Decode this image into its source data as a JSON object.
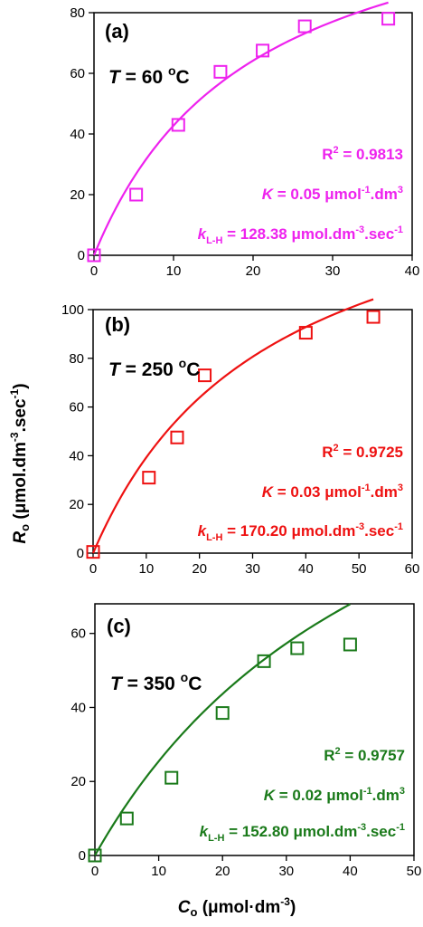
{
  "chart_data": [
    {
      "type": "scatter",
      "panel_label": "(a)",
      "temperature_prefix": "T",
      "temperature_value": " = 60 ",
      "temperature_unit_sup": "o",
      "temperature_unit": "C",
      "color": "#ee22ee",
      "xlim": [
        0,
        40
      ],
      "ylim": [
        0,
        80
      ],
      "xticks": [
        0,
        10,
        20,
        30,
        40
      ],
      "yticks": [
        0,
        20,
        40,
        60,
        80
      ],
      "points": [
        {
          "x": 0,
          "y": 0
        },
        {
          "x": 5.3,
          "y": 20
        },
        {
          "x": 10.6,
          "y": 43
        },
        {
          "x": 15.9,
          "y": 60.5
        },
        {
          "x": 21.2,
          "y": 67.5
        },
        {
          "x": 26.5,
          "y": 75.5
        },
        {
          "x": 37,
          "y": 78
        }
      ],
      "fit": {
        "model": "langmuir-hinshelwood",
        "K": 0.05,
        "kLH": 128.38,
        "x_max": 37
      },
      "r2": {
        "prefix": "R",
        "sup": "2",
        "value": " = 0.9813"
      },
      "K_text": {
        "prefix": "K",
        "value": " = 0.05 μmol",
        "sup": "-1",
        "tail": ".dm",
        "sup2": "3"
      },
      "k_text": {
        "prefix": "k",
        "sub": "L-H",
        "value": " = 128.38 μmol.dm",
        "sup": "-3",
        "tail": ".sec",
        "sup2": "-1"
      }
    },
    {
      "type": "scatter",
      "panel_label": "(b)",
      "temperature_prefix": "T",
      "temperature_value": " = 250 ",
      "temperature_unit_sup": "o",
      "temperature_unit": "C",
      "color": "#ee1111",
      "xlim": [
        0,
        60
      ],
      "ylim": [
        0,
        100
      ],
      "xticks": [
        0,
        10,
        20,
        30,
        40,
        50,
        60
      ],
      "yticks": [
        0,
        20,
        40,
        60,
        80,
        100
      ],
      "points": [
        {
          "x": 0,
          "y": 0.5
        },
        {
          "x": 10.5,
          "y": 31
        },
        {
          "x": 15.8,
          "y": 47.5
        },
        {
          "x": 21,
          "y": 73
        },
        {
          "x": 40,
          "y": 90.5
        },
        {
          "x": 52.7,
          "y": 97
        }
      ],
      "fit": {
        "model": "langmuir-hinshelwood",
        "K": 0.03,
        "kLH": 170.2,
        "x_max": 52.7
      },
      "r2": {
        "prefix": "R",
        "sup": "2",
        "value": " = 0.9725"
      },
      "K_text": {
        "prefix": "K",
        "value": " = 0.03 μmol",
        "sup": "-1",
        "tail": ".dm",
        "sup2": "3"
      },
      "k_text": {
        "prefix": "k",
        "sub": "L-H",
        "value": " = 170.20 μmol.dm",
        "sup": "-3",
        "tail": ".sec",
        "sup2": "-1"
      }
    },
    {
      "type": "scatter",
      "panel_label": "(c)",
      "temperature_prefix": "T",
      "temperature_value": " = 350 ",
      "temperature_unit_sup": "o",
      "temperature_unit": "C",
      "color": "#1a7a1a",
      "xlim": [
        0,
        50
      ],
      "ylim": [
        0,
        68
      ],
      "xticks": [
        0,
        10,
        20,
        30,
        40,
        50
      ],
      "yticks": [
        0,
        20,
        40,
        60
      ],
      "points": [
        {
          "x": 0,
          "y": 0
        },
        {
          "x": 5,
          "y": 10
        },
        {
          "x": 12,
          "y": 21
        },
        {
          "x": 20,
          "y": 38.5
        },
        {
          "x": 26.5,
          "y": 52.5
        },
        {
          "x": 31.7,
          "y": 56
        },
        {
          "x": 40,
          "y": 57
        }
      ],
      "fit": {
        "model": "langmuir-hinshelwood",
        "K": 0.02,
        "kLH": 152.8,
        "x_max": 40
      },
      "r2": {
        "prefix": "R",
        "sup": "2",
        "value": " = 0.9757"
      },
      "K_text": {
        "prefix": "K",
        "value": " = 0.02 μmol",
        "sup": "-1",
        "tail": ".dm",
        "sup2": "3"
      },
      "k_text": {
        "prefix": "k",
        "sub": "L-H",
        "value": " = 152.80 μmol.dm",
        "sup": "-3",
        "tail": ".sec",
        "sup2": "-1"
      }
    }
  ],
  "ylabel": {
    "var": "R",
    "sub": "o",
    "unit": " (μmol.dm",
    "sup": "-3",
    "tail": ".sec",
    "sup2": "-1",
    "close": ")"
  },
  "xlabel": {
    "var": "C",
    "sub": "o",
    "unit": " (μmol·dm",
    "sup": "-3",
    "close": ")"
  }
}
